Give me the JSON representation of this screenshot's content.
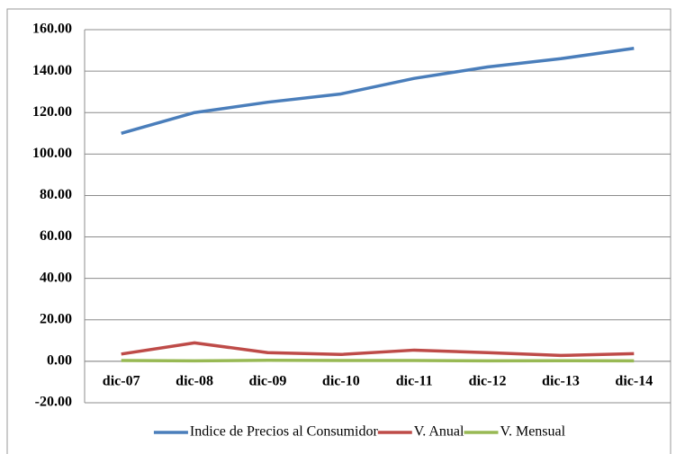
{
  "chart_data": {
    "type": "line",
    "categories": [
      "dic-07",
      "dic-08",
      "dic-09",
      "dic-10",
      "dic-11",
      "dic-12",
      "dic-13",
      "dic-14"
    ],
    "series": [
      {
        "name": "Indice de Precios al Consumidor",
        "color": "#4a7ebb",
        "values": [
          110,
          120,
          125,
          129,
          136.5,
          142,
          146,
          151
        ]
      },
      {
        "name": "V. Anual",
        "color": "#be4b48",
        "values": [
          3.5,
          8.9,
          4.2,
          3.3,
          5.4,
          4.2,
          2.8,
          3.7
        ]
      },
      {
        "name": "V. Mensual",
        "color": "#98b954",
        "values": [
          0.4,
          0.2,
          0.5,
          0.4,
          0.4,
          0.2,
          0.3,
          0.2
        ]
      }
    ],
    "ylim": [
      -20,
      160
    ],
    "yticks": [
      {
        "value": -20,
        "label": "-20.00"
      },
      {
        "value": 0,
        "label": "0.00"
      },
      {
        "value": 20,
        "label": "20.00"
      },
      {
        "value": 40,
        "label": "40.00"
      },
      {
        "value": 60,
        "label": "60.00"
      },
      {
        "value": 80,
        "label": "80.00"
      },
      {
        "value": 100,
        "label": "100.00"
      },
      {
        "value": 120,
        "label": "120.00"
      },
      {
        "value": 140,
        "label": "140.00"
      },
      {
        "value": 160,
        "label": "160.00"
      }
    ],
    "grid": true,
    "legend": "bottom"
  }
}
